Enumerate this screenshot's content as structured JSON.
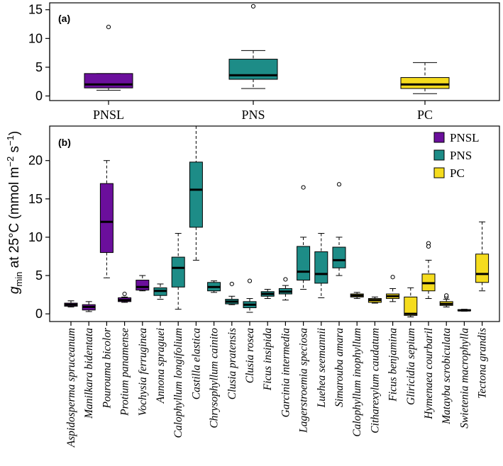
{
  "figure": {
    "ylabel": {
      "g": "g",
      "sub": "min",
      "mid": " at 25°C (mmol m",
      "sup1": "−2",
      "s": " s",
      "sup2": "−1",
      "end": ")"
    }
  },
  "colors": {
    "PNSL": "#6b0f9c",
    "PNS": "#1d8c87",
    "PC": "#f5dc1e"
  },
  "chart_data": [
    {
      "panel": "(a)",
      "type": "boxplot",
      "categories": [
        "PNSL",
        "PNS",
        "PC"
      ],
      "yticks": [
        0,
        5,
        10,
        15
      ],
      "ylim": [
        -0.8,
        16.2
      ],
      "boxes": [
        {
          "group": "PNSL",
          "whisker_low": 1.0,
          "q1": 1.4,
          "median": 2.0,
          "q3": 3.9,
          "whisker_high": 3.9,
          "outliers": [
            12.0
          ]
        },
        {
          "group": "PNS",
          "whisker_low": 1.3,
          "q1": 2.9,
          "median": 3.6,
          "q3": 6.4,
          "whisker_high": 7.9,
          "outliers": [
            15.6
          ]
        },
        {
          "group": "PC",
          "whisker_low": 0.4,
          "q1": 1.3,
          "median": 2.0,
          "q3": 3.2,
          "whisker_high": 5.8,
          "outliers": []
        }
      ]
    },
    {
      "panel": "(b)",
      "type": "boxplot",
      "yticks": [
        0,
        5,
        10,
        15,
        20
      ],
      "ylim": [
        -1,
        24.5
      ],
      "legend": [
        "PNSL",
        "PNS",
        "PC"
      ],
      "boxes": [
        {
          "species": "Aspidosperma spruceanum",
          "group": "PNSL",
          "whisker_low": 0.9,
          "q1": 1.0,
          "median": 1.2,
          "q3": 1.4,
          "whisker_high": 1.7,
          "outliers": []
        },
        {
          "species": "Manilkara bidentata",
          "group": "PNSL",
          "whisker_low": 0.3,
          "q1": 0.5,
          "median": 0.9,
          "q3": 1.2,
          "whisker_high": 1.6,
          "outliers": []
        },
        {
          "species": "Pourouma  bicolor",
          "group": "PNSL",
          "whisker_low": 4.7,
          "q1": 8.0,
          "median": 12.0,
          "q3": 17.0,
          "whisker_high": 20.0,
          "outliers": []
        },
        {
          "species": "Protium panamense",
          "group": "PNSL",
          "whisker_low": 1.5,
          "q1": 1.6,
          "median": 1.8,
          "q3": 2.1,
          "whisker_high": 2.2,
          "outliers": [
            2.6
          ]
        },
        {
          "species": "Vochysia ferruginea",
          "group": "PNSL",
          "whisker_low": 3.0,
          "q1": 3.1,
          "median": 3.5,
          "q3": 4.4,
          "whisker_high": 5.0,
          "outliers": []
        },
        {
          "species": "Annona spraguei",
          "group": "PNS",
          "whisker_low": 1.9,
          "q1": 2.4,
          "median": 3.0,
          "q3": 3.4,
          "whisker_high": 3.9,
          "outliers": []
        },
        {
          "species": "Calophyllum longifolium",
          "group": "PNS",
          "whisker_low": 0.6,
          "q1": 3.5,
          "median": 6.0,
          "q3": 7.4,
          "whisker_high": 10.5,
          "outliers": []
        },
        {
          "species": "Castilla elastica",
          "group": "PNS",
          "whisker_low": 7.0,
          "q1": 11.3,
          "median": 16.2,
          "q3": 19.8,
          "whisker_high": 24.5,
          "outliers": []
        },
        {
          "species": "Chrysophyllum cainito",
          "group": "PNS",
          "whisker_low": 2.8,
          "q1": 3.0,
          "median": 3.5,
          "q3": 4.1,
          "whisker_high": 4.3,
          "outliers": []
        },
        {
          "species": "Clusia pratensis",
          "group": "PNS",
          "whisker_low": 1.2,
          "q1": 1.3,
          "median": 1.6,
          "q3": 1.9,
          "whisker_high": 2.3,
          "outliers": [
            3.9
          ]
        },
        {
          "species": "Clusia rosea",
          "group": "PNS",
          "whisker_low": 0.2,
          "q1": 0.8,
          "median": 1.2,
          "q3": 1.6,
          "whisker_high": 2.0,
          "outliers": [
            4.3
          ]
        },
        {
          "species": "Ficus insipida",
          "group": "PNS",
          "whisker_low": 2.0,
          "q1": 2.3,
          "median": 2.6,
          "q3": 2.9,
          "whisker_high": 3.2,
          "outliers": []
        },
        {
          "species": "Garcinia intermedia",
          "group": "PNS",
          "whisker_low": 1.8,
          "q1": 2.6,
          "median": 2.9,
          "q3": 3.3,
          "whisker_high": 3.7,
          "outliers": [
            4.5
          ]
        },
        {
          "species": "Lagerstroemia speciosa",
          "group": "PNS",
          "whisker_low": 3.2,
          "q1": 4.4,
          "median": 5.5,
          "q3": 8.8,
          "whisker_high": 10.0,
          "outliers": [
            16.5
          ]
        },
        {
          "species": "Luehea seemannii",
          "group": "PNS",
          "whisker_low": 2.1,
          "q1": 4.0,
          "median": 5.2,
          "q3": 8.1,
          "whisker_high": 10.5,
          "outliers": []
        },
        {
          "species": "Simarouba amara",
          "group": "PNS",
          "whisker_low": 5.0,
          "q1": 6.0,
          "median": 7.0,
          "q3": 8.7,
          "whisker_high": 10.0,
          "outliers": [
            16.9
          ]
        },
        {
          "species": "Calophyllum inophyllum",
          "group": "PC",
          "whisker_low": 2.0,
          "q1": 2.2,
          "median": 2.4,
          "q3": 2.6,
          "whisker_high": 2.8,
          "outliers": []
        },
        {
          "species": "Citharexylum caudatum",
          "group": "PC",
          "whisker_low": 1.4,
          "q1": 1.5,
          "median": 1.8,
          "q3": 2.0,
          "whisker_high": 2.2,
          "outliers": []
        },
        {
          "species": "Ficus benjamina",
          "group": "PC",
          "whisker_low": 1.6,
          "q1": 2.0,
          "median": 2.3,
          "q3": 2.6,
          "whisker_high": 3.3,
          "outliers": [
            4.8
          ]
        },
        {
          "species": "Gliricidia sepium",
          "group": "PC",
          "whisker_low": -0.4,
          "q1": -0.2,
          "median": 0.0,
          "q3": 2.2,
          "whisker_high": 3.4,
          "outliers": []
        },
        {
          "species": "Hymenaea courbaril",
          "group": "PC",
          "whisker_low": 2.0,
          "q1": 3.0,
          "median": 4.0,
          "q3": 5.2,
          "whisker_high": 7.0,
          "outliers": [
            9.2,
            8.8
          ]
        },
        {
          "species": "Matayba scrobiculata",
          "group": "PC",
          "whisker_low": 0.9,
          "q1": 1.1,
          "median": 1.3,
          "q3": 1.6,
          "whisker_high": 1.9,
          "outliers": [
            2.2,
            2.4
          ]
        },
        {
          "species": "Swietenia macrophylla",
          "group": "PC",
          "whisker_low": 0.35,
          "q1": 0.4,
          "median": 0.45,
          "q3": 0.55,
          "whisker_high": 0.6,
          "outliers": []
        },
        {
          "species": "Tectona grandis",
          "group": "PC",
          "whisker_low": 3.0,
          "q1": 4.1,
          "median": 5.2,
          "q3": 7.8,
          "whisker_high": 12.0,
          "outliers": []
        }
      ]
    }
  ]
}
